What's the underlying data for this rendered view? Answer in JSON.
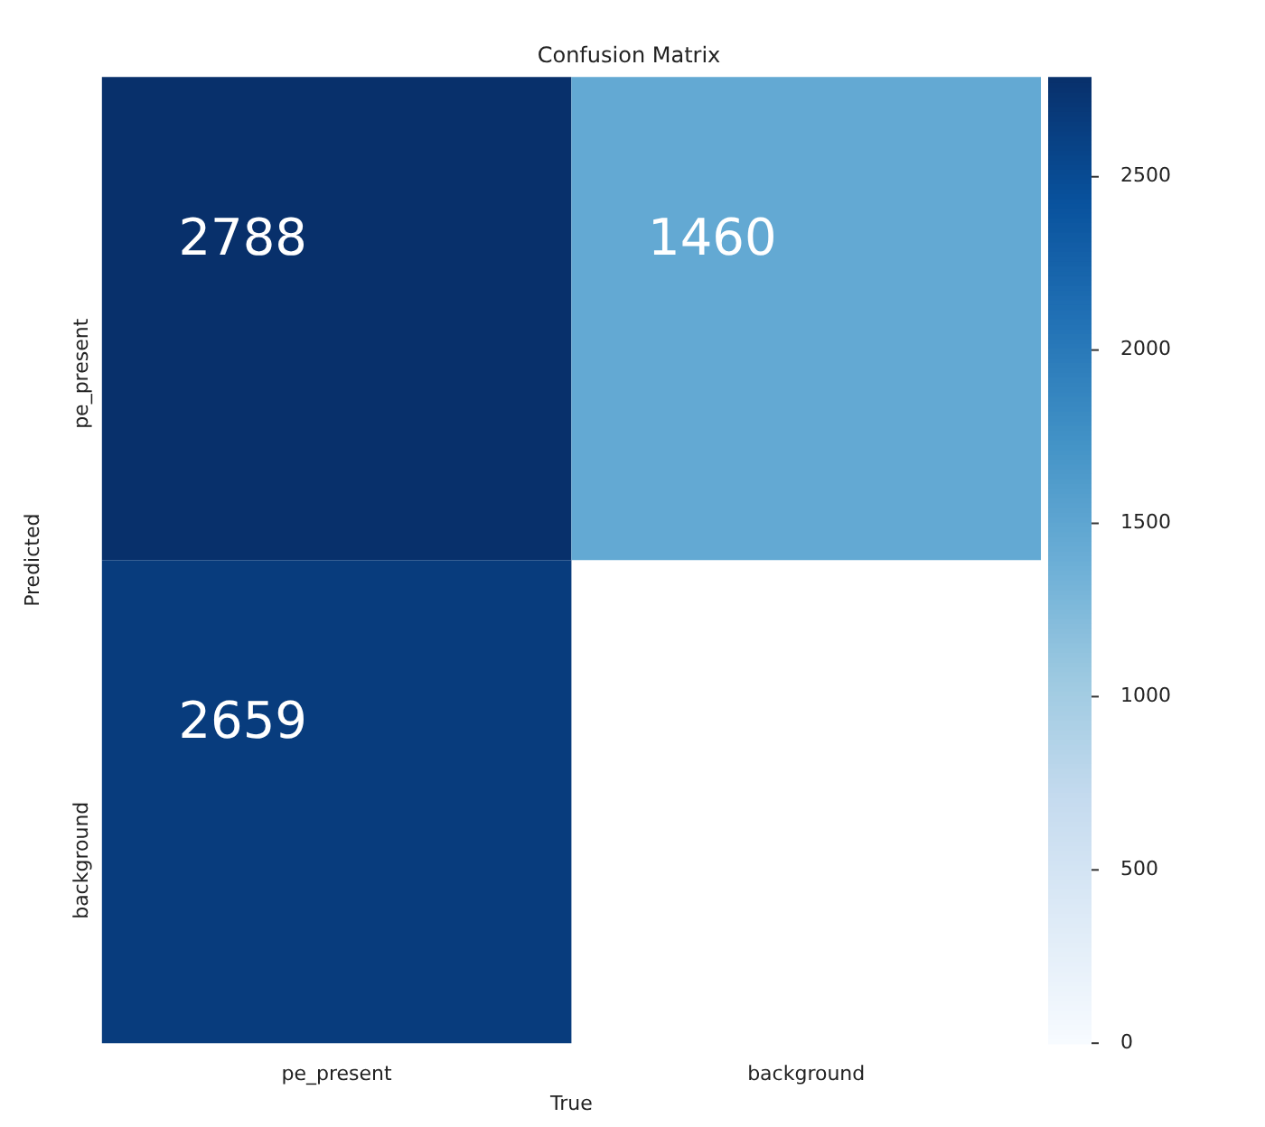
{
  "chart_data": {
    "type": "heatmap",
    "title": "Confusion Matrix",
    "xlabel": "True",
    "ylabel": "Predicted",
    "categories": [
      "pe_present",
      "background"
    ],
    "y_categories": [
      "pe_present",
      "background"
    ],
    "cells": [
      [
        2788,
        1460
      ],
      [
        2659,
        null
      ]
    ],
    "clim": [
      0,
      2788
    ],
    "cticks": [
      0,
      500,
      1000,
      1500,
      2000,
      2500
    ],
    "data_labels": true
  }
}
